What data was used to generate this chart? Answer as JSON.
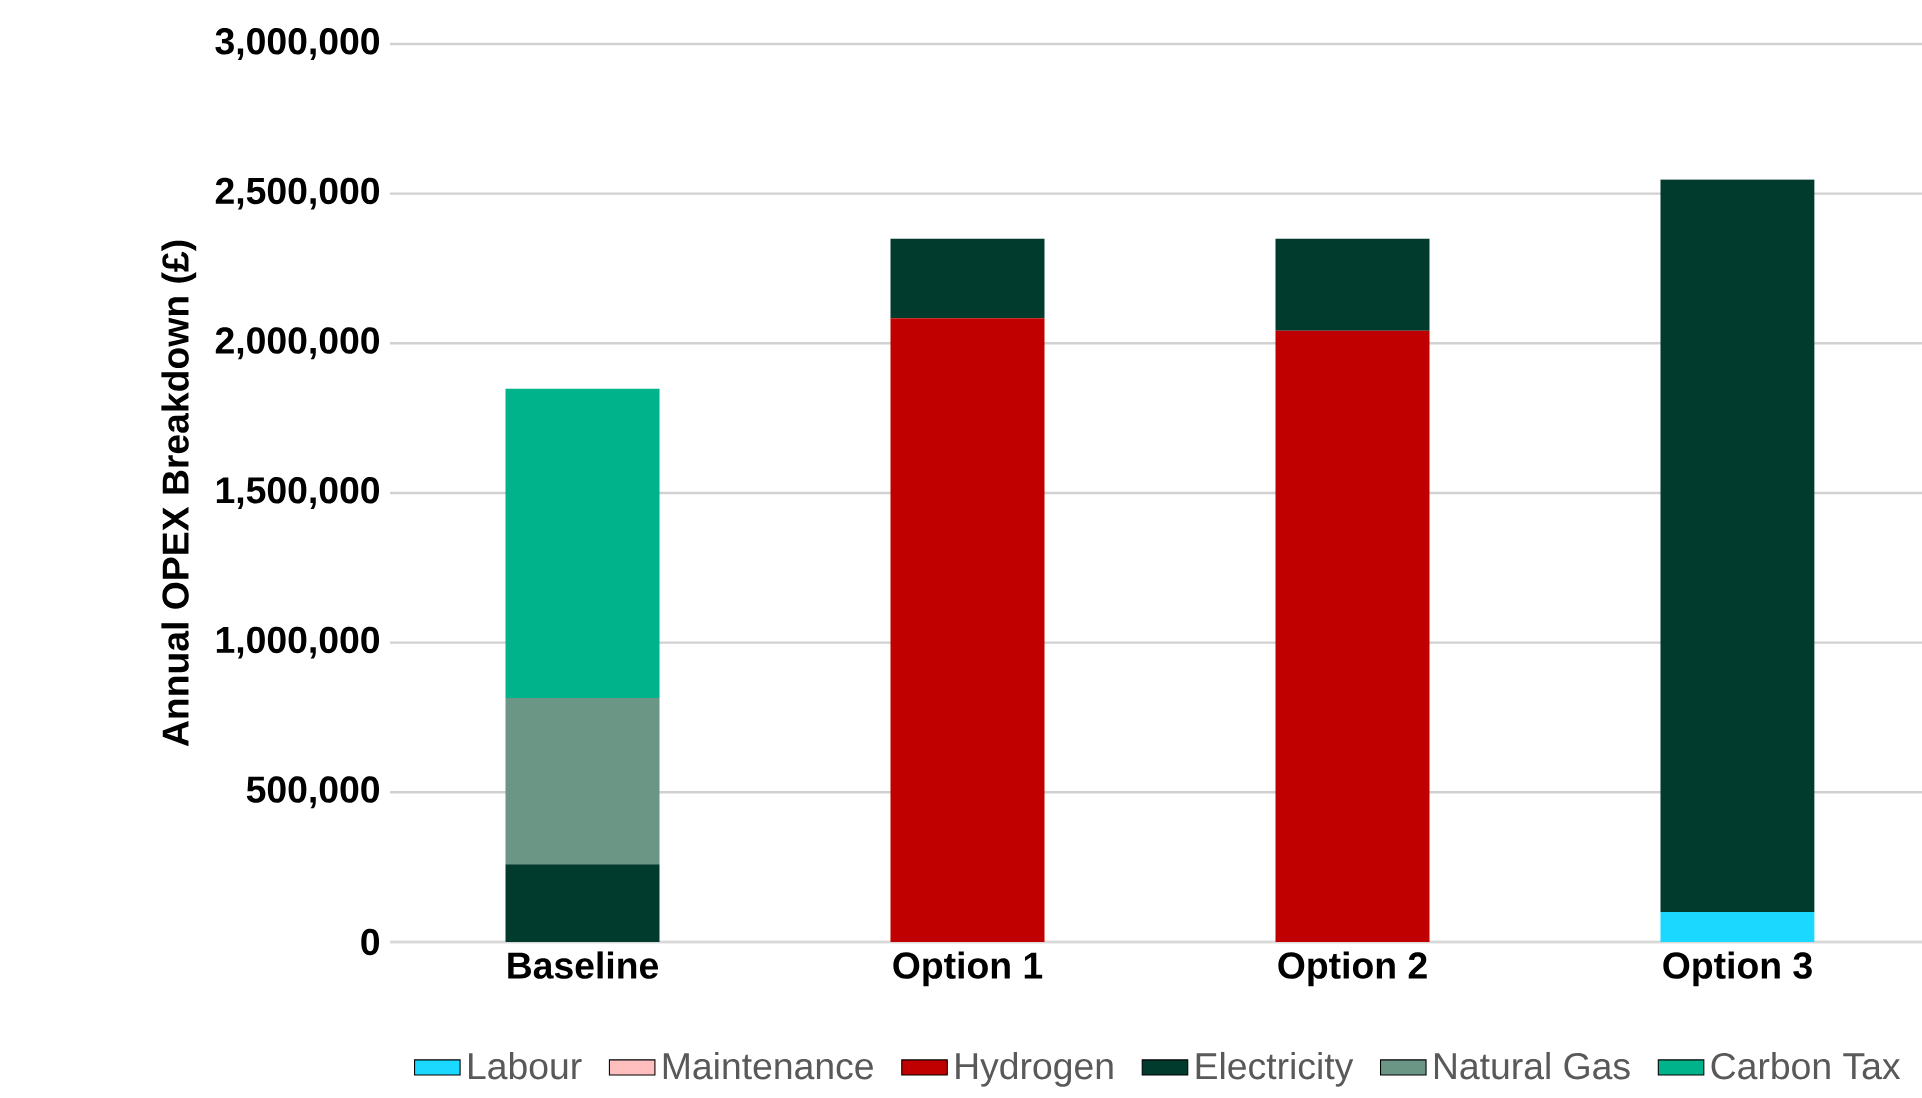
{
  "chart_data": {
    "type": "bar",
    "stacked": true,
    "ylabel": "Annual OPEX Breakdown (£)",
    "categories": [
      "Baseline",
      "Option 1",
      "Option 2",
      "Option 3"
    ],
    "series": [
      {
        "name": "Labour",
        "color": "#1ad8ff",
        "values": [
          0,
          0,
          0,
          100000
        ]
      },
      {
        "name": "Maintenance",
        "color": "#ffbfbf",
        "values": [
          0,
          0,
          0,
          0
        ]
      },
      {
        "name": "Hydrogen",
        "color": "#c00000",
        "values": [
          0,
          2084000,
          2042000,
          0
        ]
      },
      {
        "name": "Electricity",
        "color": "#003b2e",
        "values": [
          260000,
          265000,
          307000,
          2447000
        ]
      },
      {
        "name": "Natural Gas",
        "color": "#6b9584",
        "values": [
          555000,
          0,
          0,
          0
        ]
      },
      {
        "name": "Carbon Tax",
        "color": "#00b38a",
        "values": [
          1033000,
          0,
          0,
          0
        ]
      }
    ],
    "ylim": [
      0,
      3000000
    ],
    "yticks": [
      {
        "value": 0,
        "label": "0"
      },
      {
        "value": 500000,
        "label": "500,000"
      },
      {
        "value": 1000000,
        "label": "1,000,000"
      },
      {
        "value": 1500000,
        "label": "1,500,000"
      },
      {
        "value": 2000000,
        "label": "2,000,000"
      },
      {
        "value": 2500000,
        "label": "2,500,000"
      },
      {
        "value": 3000000,
        "label": "3,000,000"
      }
    ],
    "grid": "y",
    "legend": "bottom"
  }
}
